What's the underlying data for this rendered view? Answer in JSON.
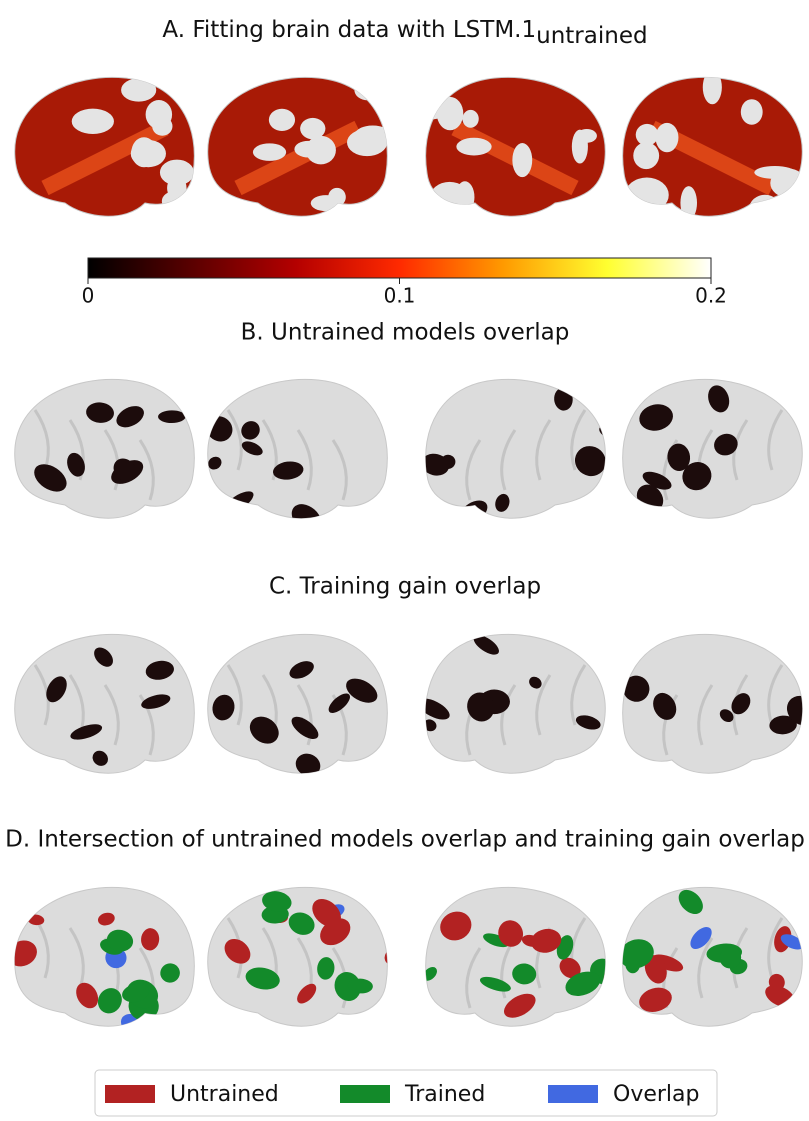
{
  "panels": [
    {
      "title": "A. Fitting brain data with LSTM.1",
      "subscript": "untrained"
    },
    {
      "title": "B. Untrained models overlap"
    },
    {
      "title": "C. Training gain overlap"
    },
    {
      "title": "D. Intersection of untrained models overlap and training gain overlap"
    }
  ],
  "colorbar": {
    "lim": [
      0,
      0.2
    ],
    "ticks": [
      0,
      0.1,
      0.2
    ],
    "colors": [
      "#000000",
      "#5a0000",
      "#b40000",
      "#ff2a00",
      "#ff9a00",
      "#ffff30",
      "#ffffff"
    ]
  },
  "legend": [
    {
      "name": "Untrained",
      "color": "#b22222"
    },
    {
      "name": "Trained",
      "color": "#138a2a"
    },
    {
      "name": "Overlap",
      "color": "#4169e1"
    }
  ]
}
